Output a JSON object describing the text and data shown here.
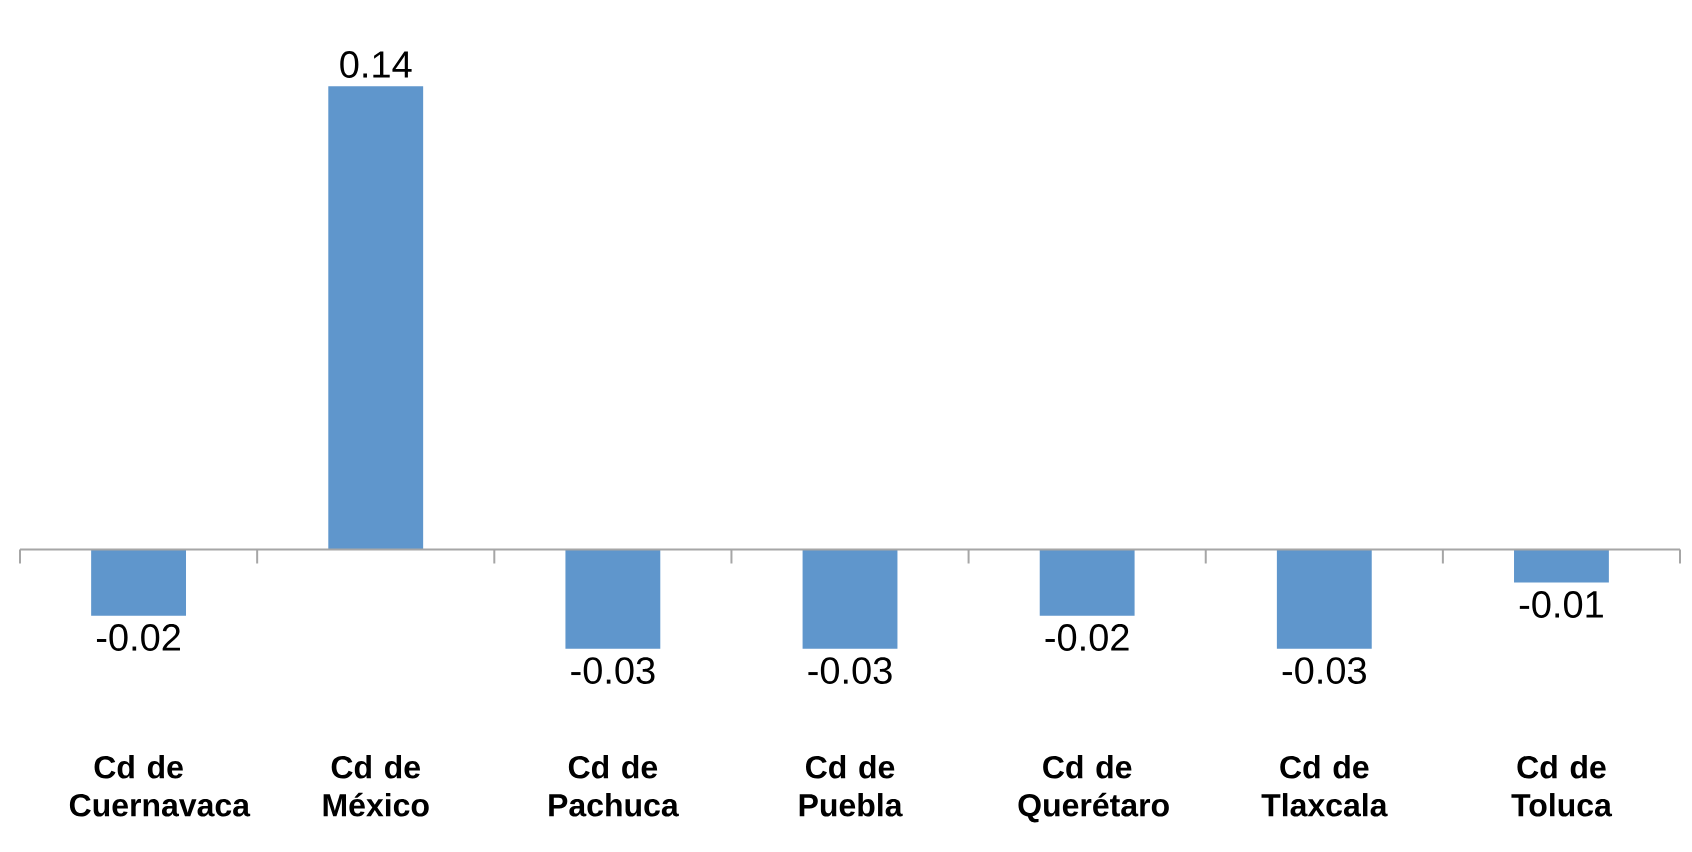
{
  "chart_data": {
    "type": "bar",
    "categories": [
      "Cd de Cuernavaca",
      "Cd de México",
      "Cd de Pachuca",
      "Cd de Puebla",
      "Cd de Querétaro",
      "Cd de Tlaxcala",
      "Cd de Toluca"
    ],
    "values": [
      -0.02,
      0.14,
      -0.03,
      -0.03,
      -0.02,
      -0.03,
      -0.01
    ],
    "color": "#5f96cc",
    "data_labels": true
  }
}
